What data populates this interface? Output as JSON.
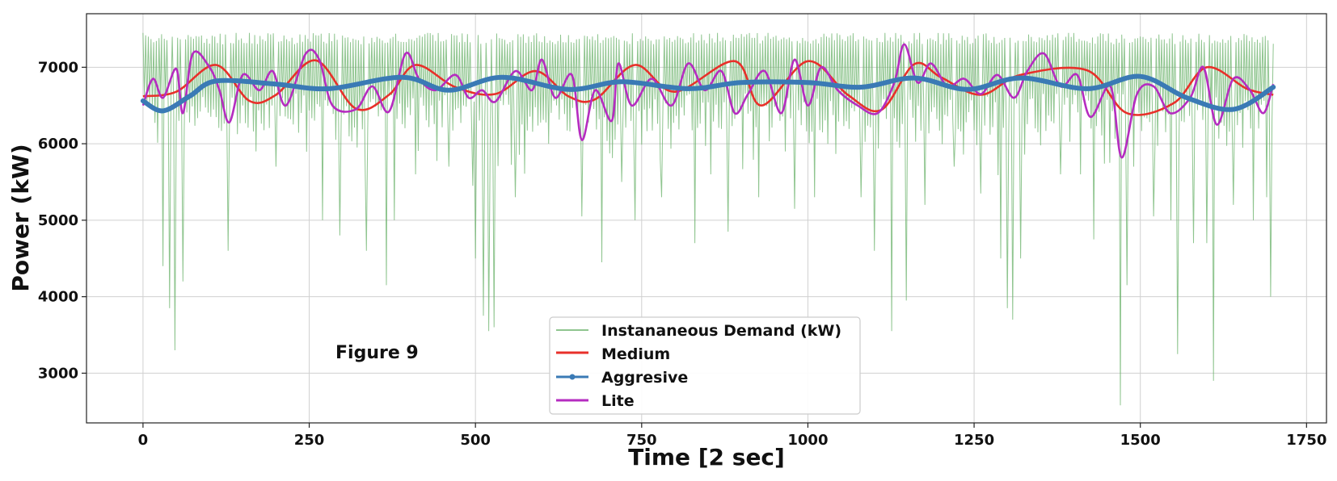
{
  "chart_data": {
    "type": "line",
    "title": "",
    "xlabel": "Time [2 sec]",
    "ylabel": "Power (kW)",
    "xlim": [
      -85,
      1780
    ],
    "ylim": [
      2350,
      7700
    ],
    "xticks": [
      0,
      250,
      500,
      750,
      1000,
      1250,
      1500,
      1750
    ],
    "yticks": [
      3000,
      4000,
      5000,
      6000,
      7000
    ],
    "grid": true,
    "legend_position": "lower-center",
    "annotation": "Figure 9",
    "series": [
      {
        "name": "Instananeous Demand (kW)",
        "color": "#6ab26a",
        "style": "thin-line",
        "x_start": 0,
        "x_end": 1700,
        "points": 850,
        "typical_range": [
          6000,
          7450
        ],
        "dips": [
          [
            30,
            4400
          ],
          [
            40,
            3850
          ],
          [
            48,
            3300
          ],
          [
            60,
            4200
          ],
          [
            128,
            4600
          ],
          [
            170,
            5900
          ],
          [
            200,
            5700
          ],
          [
            270,
            5000
          ],
          [
            295,
            4800
          ],
          [
            335,
            4600
          ],
          [
            365,
            4150
          ],
          [
            377,
            5000
          ],
          [
            410,
            5600
          ],
          [
            460,
            5700
          ],
          [
            495,
            5450
          ],
          [
            500,
            4500
          ],
          [
            512,
            3750
          ],
          [
            520,
            3550
          ],
          [
            527,
            3600
          ],
          [
            560,
            5300
          ],
          [
            610,
            6000
          ],
          [
            660,
            5050
          ],
          [
            690,
            4450
          ],
          [
            720,
            5500
          ],
          [
            740,
            5000
          ],
          [
            780,
            5300
          ],
          [
            830,
            4700
          ],
          [
            880,
            4850
          ],
          [
            925,
            5300
          ],
          [
            965,
            5900
          ],
          [
            980,
            5150
          ],
          [
            1010,
            5300
          ],
          [
            1080,
            5300
          ],
          [
            1100,
            4600
          ],
          [
            1125,
            3550
          ],
          [
            1148,
            3950
          ],
          [
            1175,
            5200
          ],
          [
            1220,
            5700
          ],
          [
            1260,
            5350
          ],
          [
            1290,
            4500
          ],
          [
            1300,
            3850
          ],
          [
            1308,
            3700
          ],
          [
            1320,
            4500
          ],
          [
            1380,
            5600
          ],
          [
            1410,
            5600
          ],
          [
            1430,
            4750
          ],
          [
            1470,
            2580
          ],
          [
            1480,
            4150
          ],
          [
            1490,
            5700
          ],
          [
            1520,
            5050
          ],
          [
            1545,
            5000
          ],
          [
            1555,
            3250
          ],
          [
            1580,
            4700
          ],
          [
            1600,
            4700
          ],
          [
            1610,
            2900
          ],
          [
            1640,
            5200
          ],
          [
            1670,
            5000
          ],
          [
            1690,
            5300
          ],
          [
            1695,
            4000
          ]
        ]
      },
      {
        "name": "Medium",
        "color": "#e8302a",
        "style": "line",
        "keypoints": [
          [
            0,
            6620
          ],
          [
            50,
            6680
          ],
          [
            110,
            7030
          ],
          [
            160,
            6560
          ],
          [
            200,
            6640
          ],
          [
            260,
            7090
          ],
          [
            320,
            6460
          ],
          [
            370,
            6640
          ],
          [
            410,
            7030
          ],
          [
            470,
            6740
          ],
          [
            530,
            6650
          ],
          [
            590,
            6950
          ],
          [
            640,
            6620
          ],
          [
            680,
            6580
          ],
          [
            740,
            7030
          ],
          [
            800,
            6680
          ],
          [
            890,
            7080
          ],
          [
            930,
            6500
          ],
          [
            1000,
            7080
          ],
          [
            1060,
            6640
          ],
          [
            1110,
            6440
          ],
          [
            1160,
            7040
          ],
          [
            1200,
            6870
          ],
          [
            1260,
            6640
          ],
          [
            1320,
            6900
          ],
          [
            1420,
            6960
          ],
          [
            1480,
            6400
          ],
          [
            1550,
            6530
          ],
          [
            1600,
            7000
          ],
          [
            1660,
            6720
          ],
          [
            1700,
            6640
          ]
        ]
      },
      {
        "name": "Aggresive",
        "color": "#3a7ab5",
        "style": "thick-line",
        "keypoints": [
          [
            0,
            6560
          ],
          [
            30,
            6430
          ],
          [
            70,
            6620
          ],
          [
            110,
            6820
          ],
          [
            200,
            6780
          ],
          [
            280,
            6720
          ],
          [
            390,
            6870
          ],
          [
            460,
            6700
          ],
          [
            540,
            6870
          ],
          [
            640,
            6710
          ],
          [
            720,
            6810
          ],
          [
            820,
            6720
          ],
          [
            900,
            6800
          ],
          [
            1000,
            6800
          ],
          [
            1080,
            6740
          ],
          [
            1160,
            6860
          ],
          [
            1240,
            6710
          ],
          [
            1320,
            6860
          ],
          [
            1420,
            6720
          ],
          [
            1500,
            6880
          ],
          [
            1570,
            6600
          ],
          [
            1640,
            6450
          ],
          [
            1700,
            6740
          ]
        ]
      },
      {
        "name": "Lite",
        "color": "#b52cc0",
        "style": "line",
        "keypoints": [
          [
            0,
            6500
          ],
          [
            15,
            6850
          ],
          [
            30,
            6600
          ],
          [
            50,
            6980
          ],
          [
            60,
            6400
          ],
          [
            75,
            7180
          ],
          [
            100,
            7000
          ],
          [
            115,
            6700
          ],
          [
            130,
            6280
          ],
          [
            150,
            6900
          ],
          [
            175,
            6700
          ],
          [
            195,
            6950
          ],
          [
            215,
            6500
          ],
          [
            245,
            7180
          ],
          [
            265,
            7100
          ],
          [
            285,
            6500
          ],
          [
            320,
            6450
          ],
          [
            345,
            6750
          ],
          [
            370,
            6420
          ],
          [
            395,
            7180
          ],
          [
            415,
            6850
          ],
          [
            440,
            6700
          ],
          [
            470,
            6900
          ],
          [
            490,
            6600
          ],
          [
            510,
            6700
          ],
          [
            530,
            6550
          ],
          [
            560,
            6950
          ],
          [
            585,
            6700
          ],
          [
            600,
            7100
          ],
          [
            620,
            6600
          ],
          [
            645,
            6900
          ],
          [
            660,
            6050
          ],
          [
            680,
            6700
          ],
          [
            705,
            6300
          ],
          [
            715,
            7050
          ],
          [
            735,
            6500
          ],
          [
            765,
            6850
          ],
          [
            795,
            6500
          ],
          [
            820,
            7050
          ],
          [
            845,
            6700
          ],
          [
            870,
            6950
          ],
          [
            890,
            6400
          ],
          [
            910,
            6650
          ],
          [
            935,
            6950
          ],
          [
            960,
            6400
          ],
          [
            980,
            7100
          ],
          [
            1000,
            6500
          ],
          [
            1020,
            7000
          ],
          [
            1045,
            6700
          ],
          [
            1075,
            6500
          ],
          [
            1105,
            6400
          ],
          [
            1130,
            6800
          ],
          [
            1145,
            7300
          ],
          [
            1165,
            6800
          ],
          [
            1185,
            7050
          ],
          [
            1210,
            6750
          ],
          [
            1235,
            6850
          ],
          [
            1260,
            6650
          ],
          [
            1285,
            6900
          ],
          [
            1310,
            6600
          ],
          [
            1330,
            6950
          ],
          [
            1355,
            7180
          ],
          [
            1380,
            6750
          ],
          [
            1405,
            6900
          ],
          [
            1425,
            6350
          ],
          [
            1455,
            6750
          ],
          [
            1472,
            5820
          ],
          [
            1495,
            6650
          ],
          [
            1520,
            6750
          ],
          [
            1545,
            6400
          ],
          [
            1575,
            6600
          ],
          [
            1595,
            7000
          ],
          [
            1615,
            6250
          ],
          [
            1640,
            6850
          ],
          [
            1665,
            6700
          ],
          [
            1685,
            6400
          ],
          [
            1700,
            6780
          ]
        ]
      }
    ]
  }
}
